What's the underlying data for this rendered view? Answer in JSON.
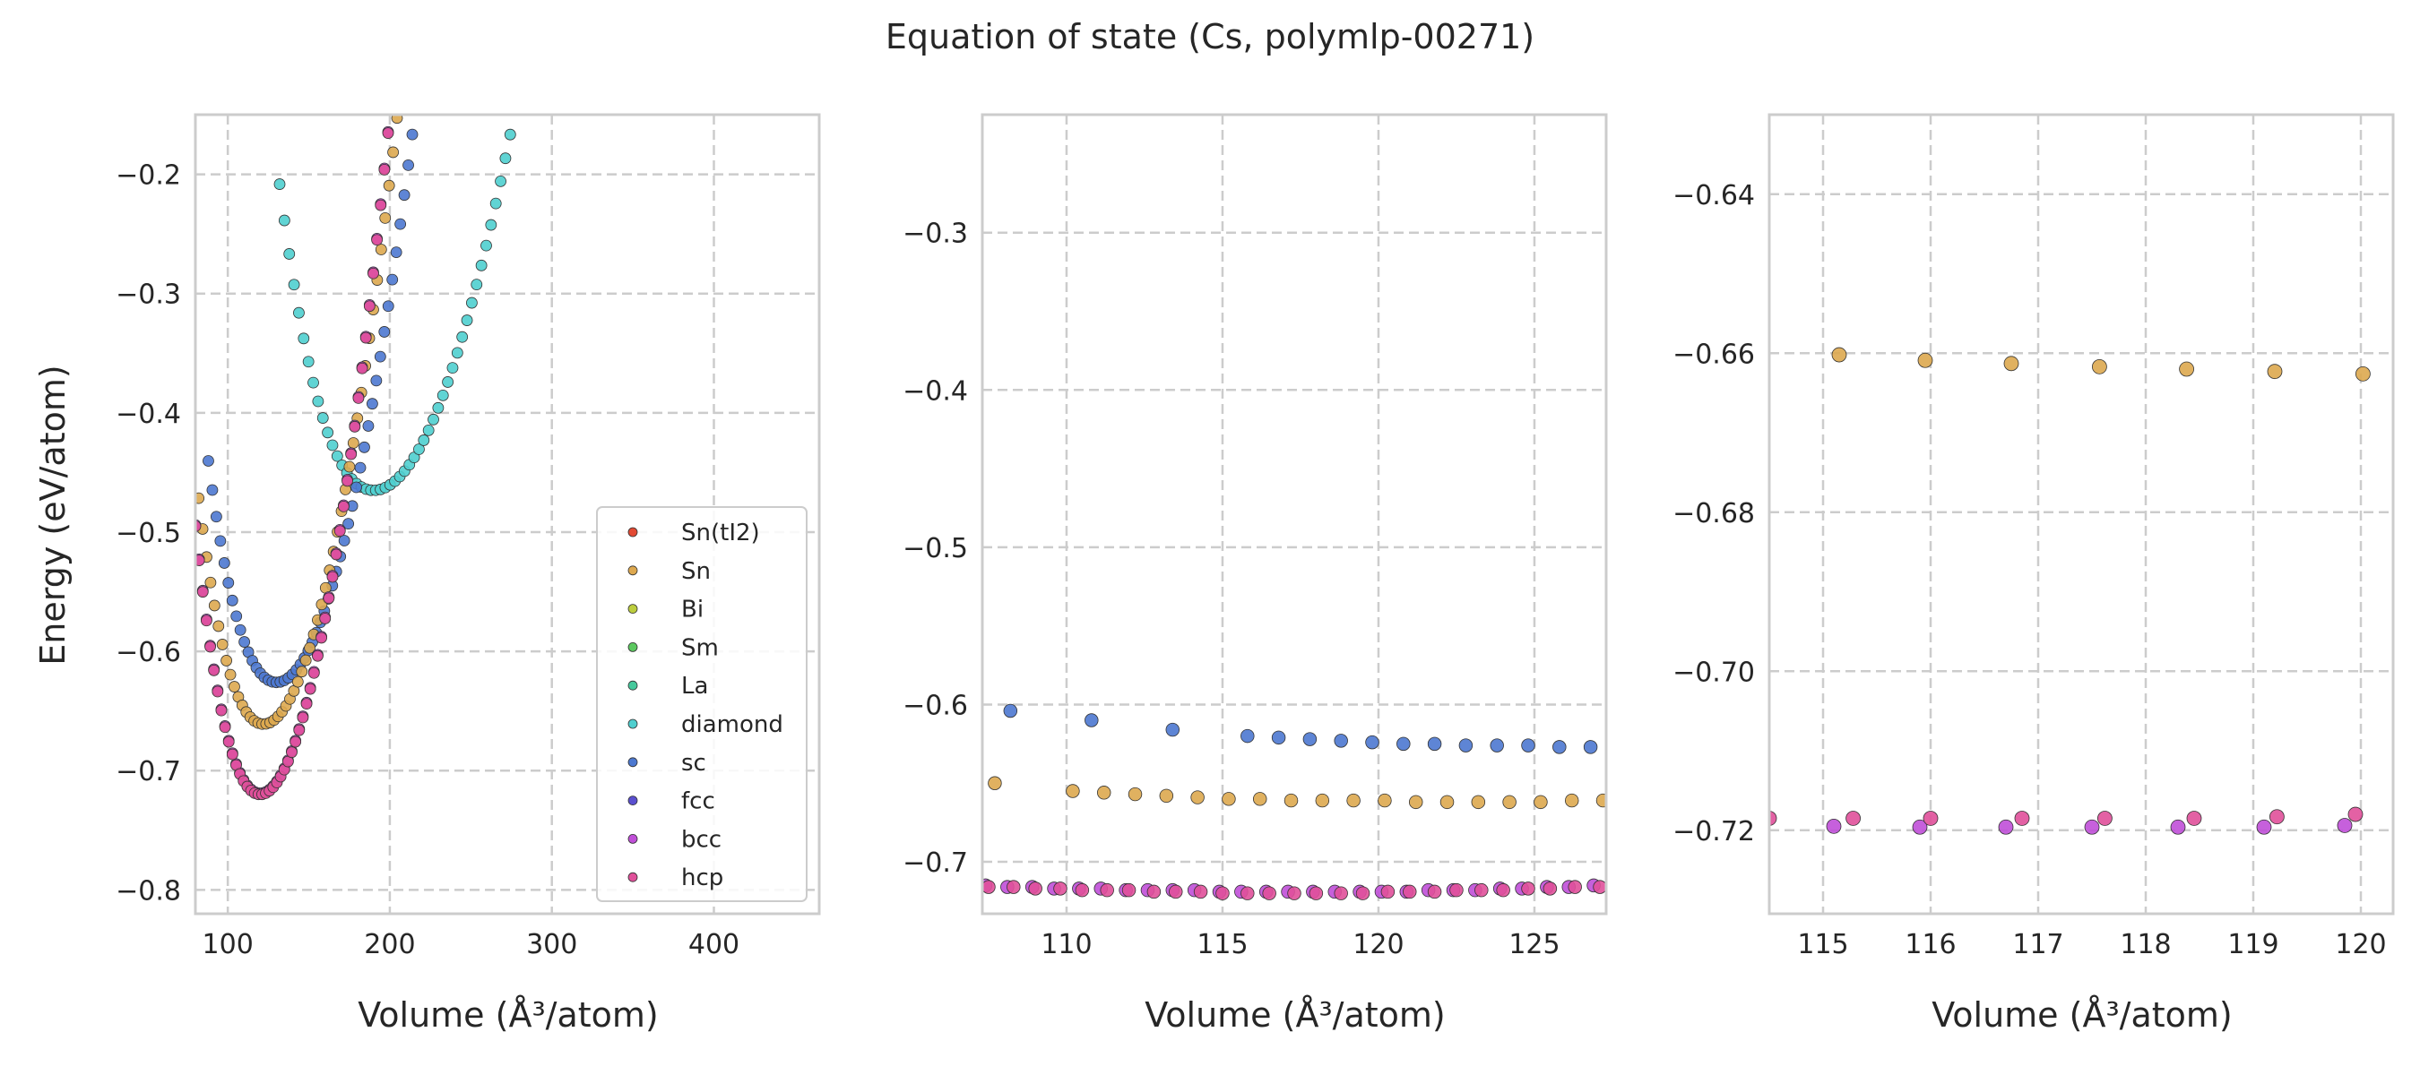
{
  "figure": {
    "title": "Equation of state (Cs, polymlp-00271)",
    "ylabel": "Energy (eV/atom)",
    "xlabel": "Volume (Å³/atom)"
  },
  "legend": {
    "placement": "lower-right of first panel",
    "entries": [
      {
        "name": "Sn(tI2)",
        "color": "#e24a33"
      },
      {
        "name": "Sn",
        "color": "#dda84f"
      },
      {
        "name": "Bi",
        "color": "#bccd3e"
      },
      {
        "name": "Sm",
        "color": "#5cc85f"
      },
      {
        "name": "La",
        "color": "#46c99c"
      },
      {
        "name": "diamond",
        "color": "#4fcfcf"
      },
      {
        "name": "sc",
        "color": "#4c78d0"
      },
      {
        "name": "fcc",
        "color": "#5a4fcf"
      },
      {
        "name": "bcc",
        "color": "#c04fd8"
      },
      {
        "name": "hcp",
        "color": "#e0509a"
      }
    ]
  },
  "chart_data": [
    {
      "type": "scatter",
      "panel": "full range",
      "xlim": [
        80,
        465
      ],
      "ylim": [
        -0.82,
        -0.15
      ],
      "xticks": [
        "100",
        "200",
        "300",
        "400"
      ],
      "yticks": [
        "−0.8",
        "−0.7",
        "−0.6",
        "−0.5",
        "−0.4",
        "−0.3",
        "−0.2"
      ],
      "grid": true,
      "series": [
        {
          "name": "diamond",
          "model": {
            "kind": "eos",
            "E0": -0.465,
            "V0": 190,
            "B": 4.5e-05,
            "Vmin": 132,
            "Vmax": 470,
            "n": 115
          }
        },
        {
          "name": "sc",
          "model": {
            "kind": "eos",
            "E0": -0.626,
            "V0": 130,
            "B": 7e-05,
            "Vmin": 88,
            "Vmax": 320,
            "n": 95
          }
        },
        {
          "name": "Sn",
          "model": {
            "kind": "eos",
            "E0": -0.661,
            "V0": 122,
            "B": 8e-05,
            "Vmin": 82,
            "Vmax": 300,
            "n": 90
          }
        },
        {
          "name": "bcc",
          "model": {
            "kind": "eos",
            "E0": -0.719,
            "V0": 120,
            "B": 9.5e-05,
            "Vmin": 80,
            "Vmax": 295,
            "n": 95
          }
        },
        {
          "name": "hcp",
          "model": {
            "kind": "eos",
            "E0": -0.72,
            "V0": 120,
            "B": 9.5e-05,
            "Vmin": 80,
            "Vmax": 295,
            "n": 95
          }
        }
      ]
    },
    {
      "type": "scatter",
      "panel": "zoom 107-127",
      "xlim": [
        107.3,
        127.3
      ],
      "ylim": [
        -0.733,
        -0.225
      ],
      "xticks": [
        "110",
        "115",
        "120",
        "125"
      ],
      "yticks": [
        "−0.7",
        "−0.6",
        "−0.5",
        "−0.4",
        "−0.3"
      ],
      "grid": true,
      "series": [
        {
          "name": "sc",
          "x": [
            108.2,
            110.8,
            113.4,
            115.8,
            116.8,
            117.8,
            118.8,
            119.8,
            120.8,
            121.8,
            122.8,
            123.8,
            124.8,
            125.8,
            126.8
          ],
          "y": [
            -0.604,
            -0.61,
            -0.616,
            -0.62,
            -0.621,
            -0.622,
            -0.623,
            -0.624,
            -0.625,
            -0.625,
            -0.626,
            -0.626,
            -0.626,
            -0.627,
            -0.627
          ]
        },
        {
          "name": "Sn",
          "x": [
            107.7,
            110.2,
            111.2,
            112.2,
            113.2,
            114.2,
            115.2,
            116.2,
            117.2,
            118.2,
            119.2,
            120.2,
            121.2,
            122.2,
            123.2,
            124.2,
            125.2,
            126.2,
            127.2
          ],
          "y": [
            -0.65,
            -0.655,
            -0.656,
            -0.657,
            -0.658,
            -0.659,
            -0.66,
            -0.66,
            -0.661,
            -0.661,
            -0.661,
            -0.661,
            -0.662,
            -0.662,
            -0.662,
            -0.662,
            -0.662,
            -0.661,
            -0.661
          ]
        },
        {
          "name": "bcc",
          "x": [
            107.4,
            108.1,
            108.9,
            109.6,
            110.4,
            111.1,
            111.9,
            112.6,
            113.4,
            114.1,
            114.9,
            115.6,
            116.4,
            117.1,
            117.9,
            118.6,
            119.4,
            120.1,
            120.9,
            121.6,
            122.4,
            123.1,
            123.9,
            124.6,
            125.4,
            126.1,
            126.9
          ],
          "y": [
            -0.715,
            -0.716,
            -0.716,
            -0.717,
            -0.717,
            -0.717,
            -0.718,
            -0.718,
            -0.718,
            -0.718,
            -0.719,
            -0.719,
            -0.719,
            -0.719,
            -0.719,
            -0.719,
            -0.719,
            -0.719,
            -0.719,
            -0.718,
            -0.718,
            -0.718,
            -0.717,
            -0.717,
            -0.716,
            -0.716,
            -0.715
          ]
        },
        {
          "name": "hcp",
          "x": [
            107.5,
            108.3,
            109.0,
            109.8,
            110.5,
            111.3,
            112.0,
            112.8,
            113.5,
            114.3,
            115.0,
            115.8,
            116.5,
            117.3,
            118.0,
            118.8,
            119.5,
            120.3,
            121.0,
            121.8,
            122.5,
            123.3,
            124.0,
            124.8,
            125.5,
            126.3,
            127.1
          ],
          "y": [
            -0.716,
            -0.716,
            -0.717,
            -0.717,
            -0.718,
            -0.718,
            -0.718,
            -0.719,
            -0.719,
            -0.719,
            -0.72,
            -0.72,
            -0.72,
            -0.72,
            -0.72,
            -0.72,
            -0.72,
            -0.719,
            -0.719,
            -0.719,
            -0.718,
            -0.718,
            -0.718,
            -0.717,
            -0.717,
            -0.716,
            -0.716
          ]
        }
      ]
    },
    {
      "type": "scatter",
      "panel": "zoom 114.5-120.3",
      "xlim": [
        114.5,
        120.3
      ],
      "ylim": [
        -0.7305,
        -0.63
      ],
      "xticks": [
        "115",
        "116",
        "117",
        "118",
        "119",
        "120"
      ],
      "yticks": [
        "−0.72",
        "−0.70",
        "−0.68",
        "−0.66",
        "−0.64"
      ],
      "grid": true,
      "series": [
        {
          "name": "Sn",
          "x": [
            115.15,
            115.95,
            116.75,
            117.57,
            118.38,
            119.2,
            120.02
          ],
          "y": [
            -0.6602,
            -0.6609,
            -0.6613,
            -0.6617,
            -0.662,
            -0.6623,
            -0.6626
          ]
        },
        {
          "name": "bcc",
          "x": [
            115.1,
            115.9,
            116.7,
            117.5,
            118.3,
            119.1,
            119.85
          ],
          "y": [
            -0.7195,
            -0.7196,
            -0.7196,
            -0.7196,
            -0.7196,
            -0.7196,
            -0.7194
          ]
        },
        {
          "name": "hcp",
          "x": [
            114.5,
            115.28,
            116.0,
            116.85,
            117.62,
            118.45,
            119.22,
            119.95
          ],
          "y": [
            -0.7185,
            -0.7185,
            -0.7185,
            -0.7185,
            -0.7185,
            -0.7185,
            -0.7183,
            -0.718
          ]
        }
      ]
    }
  ]
}
